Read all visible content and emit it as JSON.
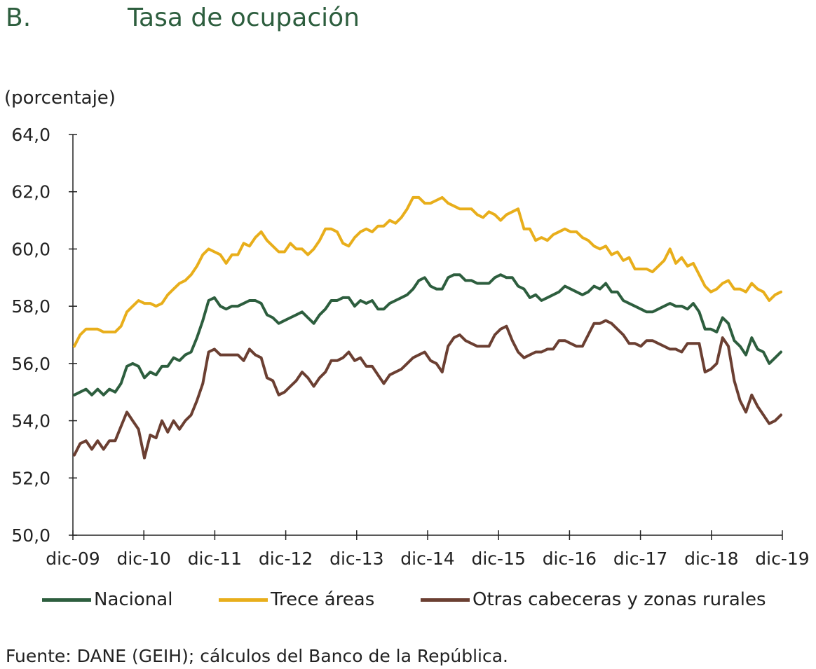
{
  "header": {
    "letter": "B.",
    "title": "Tasa de ocupación"
  },
  "source": "Fuente: DANE (GEIH); cálculos del Banco de la República.",
  "chart_data": {
    "type": "line",
    "ylabel": "(porcentaje)",
    "ylim": [
      50,
      64
    ],
    "yticks": [
      "64,0",
      "62,0",
      "60,0",
      "58,0",
      "56,0",
      "54,0",
      "52,0",
      "50,0"
    ],
    "ytick_values": [
      64,
      62,
      60,
      58,
      56,
      54,
      52,
      50
    ],
    "xtick_labels": [
      "dic-09",
      "dic-10",
      "dic-11",
      "dic-12",
      "dic-13",
      "dic-14",
      "dic-15",
      "dic-16",
      "dic-17",
      "dic-18",
      "dic-19"
    ],
    "x_start": "dic-09",
    "x_end": "dic-19",
    "legend_position": "bottom",
    "series": [
      {
        "name": "Nacional",
        "color": "#2d5e3e",
        "values": [
          54.9,
          55.0,
          55.1,
          54.9,
          55.1,
          54.9,
          55.1,
          55.0,
          55.3,
          55.9,
          56.0,
          55.9,
          55.5,
          55.7,
          55.6,
          55.9,
          55.9,
          56.2,
          56.1,
          56.3,
          56.4,
          56.9,
          57.5,
          58.2,
          58.3,
          58.0,
          57.9,
          58.0,
          58.0,
          58.1,
          58.2,
          58.2,
          58.1,
          57.7,
          57.6,
          57.4,
          57.5,
          57.6,
          57.7,
          57.8,
          57.6,
          57.4,
          57.7,
          57.9,
          58.2,
          58.2,
          58.3,
          58.3,
          58.0,
          58.2,
          58.1,
          58.2,
          57.9,
          57.9,
          58.1,
          58.2,
          58.3,
          58.4,
          58.6,
          58.9,
          59.0,
          58.7,
          58.6,
          58.6,
          59.0,
          59.1,
          59.1,
          58.9,
          58.9,
          58.8,
          58.8,
          58.8,
          59.0,
          59.1,
          59.0,
          59.0,
          58.7,
          58.6,
          58.3,
          58.4,
          58.2,
          58.3,
          58.4,
          58.5,
          58.7,
          58.6,
          58.5,
          58.4,
          58.5,
          58.7,
          58.6,
          58.8,
          58.5,
          58.5,
          58.2,
          58.1,
          58.0,
          57.9,
          57.8,
          57.8,
          57.9,
          58.0,
          58.1,
          58.0,
          58.0,
          57.9,
          58.1,
          57.8,
          57.2,
          57.2,
          57.1,
          57.6,
          57.4,
          56.8,
          56.6,
          56.3,
          56.9,
          56.5,
          56.4,
          56.0,
          56.2,
          56.4
        ]
      },
      {
        "name": "Trece áreas",
        "color": "#e8ae1b",
        "values": [
          56.6,
          57.0,
          57.2,
          57.2,
          57.2,
          57.1,
          57.1,
          57.1,
          57.3,
          57.8,
          58.0,
          58.2,
          58.1,
          58.1,
          58.0,
          58.1,
          58.4,
          58.6,
          58.8,
          58.9,
          59.1,
          59.4,
          59.8,
          60.0,
          59.9,
          59.8,
          59.5,
          59.8,
          59.8,
          60.2,
          60.1,
          60.4,
          60.6,
          60.3,
          60.1,
          59.9,
          59.9,
          60.2,
          60.0,
          60.0,
          59.8,
          60.0,
          60.3,
          60.7,
          60.7,
          60.6,
          60.2,
          60.1,
          60.4,
          60.6,
          60.7,
          60.6,
          60.8,
          60.8,
          61.0,
          60.9,
          61.1,
          61.4,
          61.8,
          61.8,
          61.6,
          61.6,
          61.7,
          61.8,
          61.6,
          61.5,
          61.4,
          61.4,
          61.4,
          61.2,
          61.1,
          61.3,
          61.2,
          61.0,
          61.2,
          61.3,
          61.4,
          60.7,
          60.7,
          60.3,
          60.4,
          60.3,
          60.5,
          60.6,
          60.7,
          60.6,
          60.6,
          60.4,
          60.3,
          60.1,
          60.0,
          60.1,
          59.8,
          59.9,
          59.6,
          59.7,
          59.3,
          59.3,
          59.3,
          59.2,
          59.4,
          59.6,
          60.0,
          59.5,
          59.7,
          59.4,
          59.5,
          59.1,
          58.7,
          58.5,
          58.6,
          58.8,
          58.9,
          58.6,
          58.6,
          58.5,
          58.8,
          58.6,
          58.5,
          58.2,
          58.4,
          58.5
        ]
      },
      {
        "name": "Otras cabeceras y zonas rurales",
        "color": "#6b3f32",
        "values": [
          52.8,
          53.2,
          53.3,
          53.0,
          53.3,
          53.0,
          53.3,
          53.3,
          53.8,
          54.3,
          54.0,
          53.7,
          52.7,
          53.5,
          53.4,
          54.0,
          53.6,
          54.0,
          53.7,
          54.0,
          54.2,
          54.7,
          55.3,
          56.4,
          56.5,
          56.3,
          56.3,
          56.3,
          56.3,
          56.1,
          56.5,
          56.3,
          56.2,
          55.5,
          55.4,
          54.9,
          55.0,
          55.2,
          55.4,
          55.7,
          55.5,
          55.2,
          55.5,
          55.7,
          56.1,
          56.1,
          56.2,
          56.4,
          56.1,
          56.2,
          55.9,
          55.9,
          55.6,
          55.3,
          55.6,
          55.7,
          55.8,
          56.0,
          56.2,
          56.3,
          56.4,
          56.1,
          56.0,
          55.7,
          56.6,
          56.9,
          57.0,
          56.8,
          56.7,
          56.6,
          56.6,
          56.6,
          57.0,
          57.2,
          57.3,
          56.8,
          56.4,
          56.2,
          56.3,
          56.4,
          56.4,
          56.5,
          56.5,
          56.8,
          56.8,
          56.7,
          56.6,
          56.6,
          57.0,
          57.4,
          57.4,
          57.5,
          57.4,
          57.2,
          57.0,
          56.7,
          56.7,
          56.6,
          56.8,
          56.8,
          56.7,
          56.6,
          56.5,
          56.5,
          56.4,
          56.7,
          56.7,
          56.7,
          55.7,
          55.8,
          56.0,
          56.9,
          56.6,
          55.4,
          54.7,
          54.3,
          54.9,
          54.5,
          54.2,
          53.9,
          54.0,
          54.2
        ]
      }
    ]
  }
}
